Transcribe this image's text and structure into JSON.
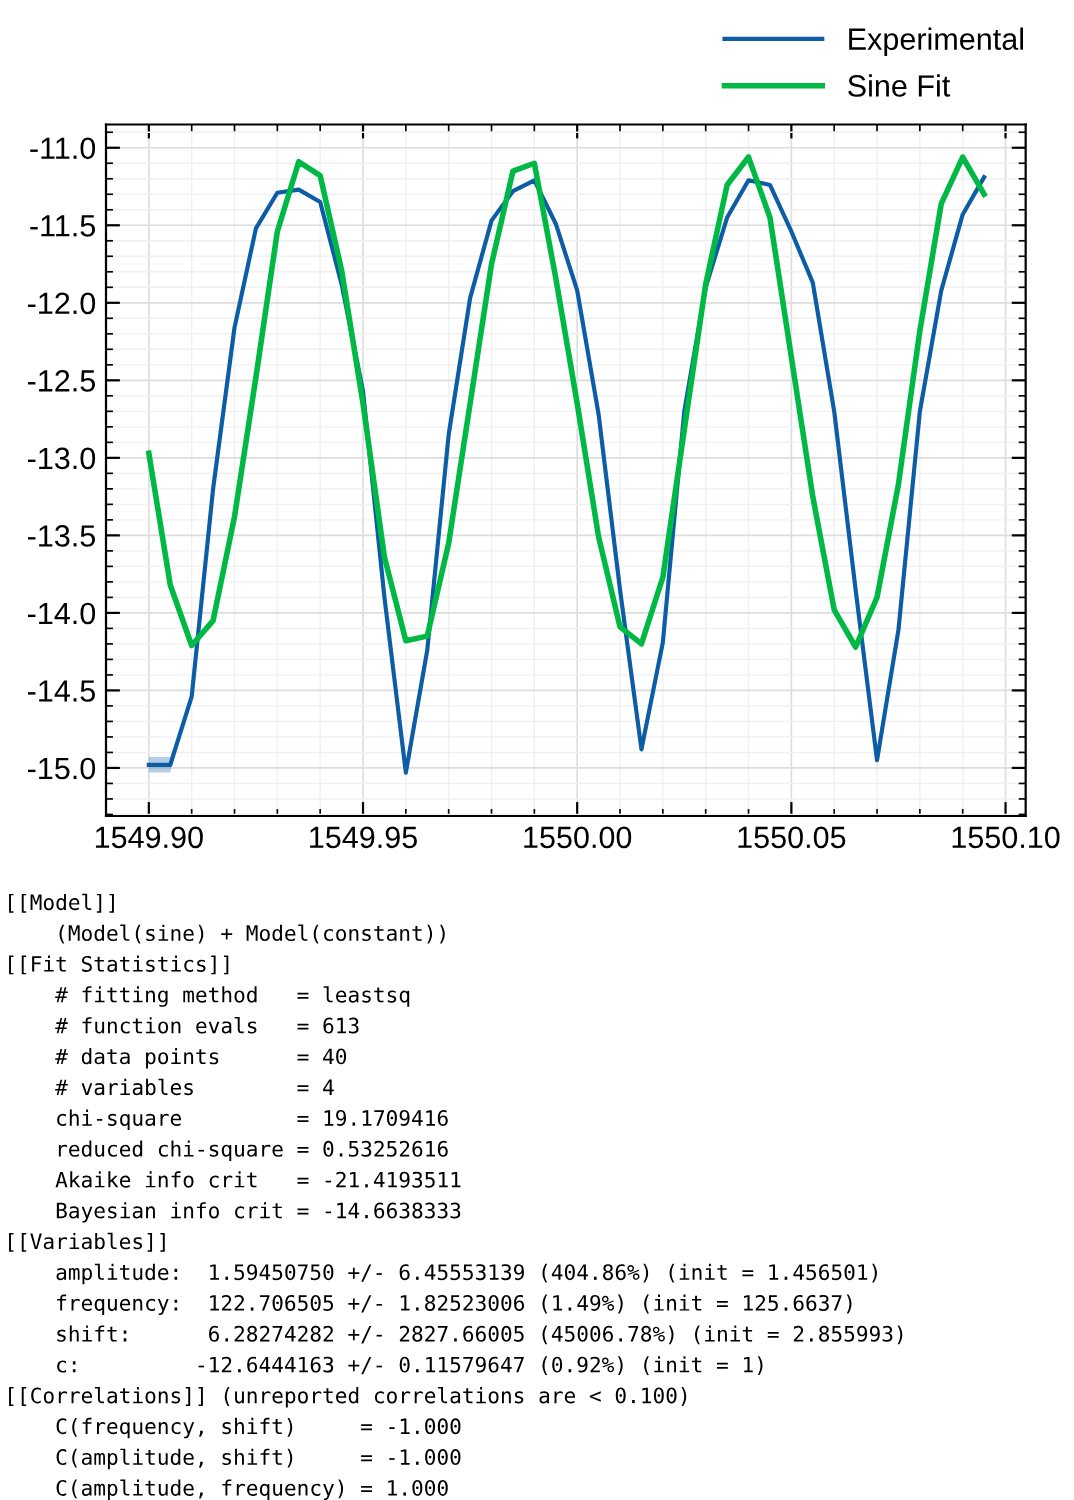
{
  "chart_data": {
    "type": "line",
    "x": [
      1549.9,
      1549.905,
      1549.91,
      1549.915,
      1549.92,
      1549.925,
      1549.93,
      1549.935,
      1549.94,
      1549.945,
      1549.95,
      1549.955,
      1549.96,
      1549.965,
      1549.97,
      1549.975,
      1549.98,
      1549.985,
      1549.99,
      1549.995,
      1550.0,
      1550.005,
      1550.01,
      1550.015,
      1550.02,
      1550.025,
      1550.03,
      1550.035,
      1550.04,
      1550.045,
      1550.05,
      1550.055,
      1550.06,
      1550.065,
      1550.07,
      1550.075,
      1550.08,
      1550.085,
      1550.09,
      1550.095
    ],
    "series": [
      {
        "name": "Experimental",
        "color": "#0c5da5",
        "values": [
          -14.98,
          -14.98,
          -14.54,
          -13.2,
          -12.16,
          -11.52,
          -11.29,
          -11.27,
          -11.35,
          -11.88,
          -12.57,
          -13.9,
          -15.03,
          -14.24,
          -12.85,
          -11.97,
          -11.47,
          -11.28,
          -11.21,
          -11.49,
          -11.92,
          -12.72,
          -13.85,
          -14.88,
          -14.19,
          -12.7,
          -11.9,
          -11.45,
          -11.21,
          -11.24,
          -11.54,
          -11.87,
          -12.7,
          -13.85,
          -14.95,
          -14.11,
          -12.7,
          -11.92,
          -11.43,
          -11.19
        ],
        "lower": [
          -15.03,
          -15.03,
          -14.54,
          -13.2,
          -12.16,
          -11.52,
          -11.29,
          -11.27,
          -11.35,
          -11.88,
          -12.57,
          -13.9,
          -15.03,
          -14.24,
          -12.85,
          -11.97,
          -11.47,
          -11.28,
          -11.21,
          -11.49,
          -11.92,
          -12.72,
          -13.85,
          -14.88,
          -14.19,
          -12.7,
          -11.9,
          -11.45,
          -11.21,
          -11.24,
          -11.54,
          -11.87,
          -12.7,
          -13.85,
          -14.95,
          -14.11,
          -12.7,
          -11.92,
          -11.43,
          -11.19
        ],
        "upper": [
          -14.93,
          -14.93,
          -14.54,
          -13.2,
          -12.16,
          -11.52,
          -11.29,
          -11.27,
          -11.35,
          -11.88,
          -12.57,
          -13.9,
          -15.03,
          -14.24,
          -12.85,
          -11.97,
          -11.47,
          -11.28,
          -11.21,
          -11.49,
          -11.92,
          -12.72,
          -13.85,
          -14.88,
          -14.19,
          -12.7,
          -11.9,
          -11.45,
          -11.21,
          -11.24,
          -11.54,
          -11.87,
          -12.7,
          -13.85,
          -14.95,
          -14.11,
          -12.7,
          -11.92,
          -11.43,
          -11.19
        ]
      },
      {
        "name": "Sine Fit",
        "color": "#00b945",
        "values": [
          -12.97,
          -13.82,
          -14.21,
          -14.05,
          -13.38,
          -12.48,
          -11.54,
          -11.09,
          -11.18,
          -11.79,
          -12.65,
          -13.64,
          -14.18,
          -14.15,
          -13.55,
          -12.65,
          -11.75,
          -11.15,
          -11.1,
          -11.84,
          -12.65,
          -13.51,
          -14.09,
          -14.2,
          -13.77,
          -12.82,
          -11.88,
          -11.24,
          -11.06,
          -11.45,
          -12.35,
          -13.25,
          -13.98,
          -14.22,
          -13.9,
          -13.17,
          -12.18,
          -11.36,
          -11.06,
          -11.3
        ]
      }
    ],
    "xlim": [
      1549.89,
      1550.1047
    ],
    "xticks": [
      {
        "value": 1549.9,
        "label": "1549.90"
      },
      {
        "value": 1549.95,
        "label": "1549.95"
      },
      {
        "value": 1550.0,
        "label": "1550.00"
      },
      {
        "value": 1550.05,
        "label": "1550.05"
      },
      {
        "value": 1550.1,
        "label": "1550.10"
      }
    ],
    "ylim": [
      -15.31,
      -10.85
    ],
    "yticks": [
      {
        "value": -15.0,
        "label": "-15.0"
      },
      {
        "value": -14.5,
        "label": "-14.5"
      },
      {
        "value": -14.0,
        "label": "-14.0"
      },
      {
        "value": -13.5,
        "label": "-13.5"
      },
      {
        "value": -13.0,
        "label": "-13.0"
      },
      {
        "value": -12.5,
        "label": "-12.5"
      },
      {
        "value": -12.0,
        "label": "-12.0"
      },
      {
        "value": -11.5,
        "label": "-11.5"
      },
      {
        "value": -11.0,
        "label": "-11.0"
      }
    ],
    "grid": true,
    "legend": "top right",
    "annotations": [
      "[[Model]]",
      "    (Model(sine) + Model(constant))",
      "[[Fit Statistics]]",
      "    # fitting method   = leastsq",
      "    # function evals   = 613",
      "    # data points      = 40",
      "    # variables        = 4",
      "    chi-square         = 19.1709416",
      "    reduced chi-square = 0.53252616",
      "    Akaike info crit   = -21.4193511",
      "    Bayesian info crit = -14.6638333",
      "[[Variables]]",
      "    amplitude:  1.59450750 +/- 6.45553139 (404.86%) (init = 1.456501)",
      "    frequency:  122.706505 +/- 1.82523006 (1.49%) (init = 125.6637)",
      "    shift:      6.28274282 +/- 2827.66005 (45006.78%) (init = 2.855993)",
      "    c:         -12.6444163 +/- 0.11579647 (0.92%) (init = 1)",
      "[[Correlations]] (unreported correlations are < 0.100)",
      "    C(frequency, shift)     = -1.000",
      "    C(amplitude, shift)     = -1.000",
      "    C(amplitude, frequency) = 1.000"
    ]
  }
}
